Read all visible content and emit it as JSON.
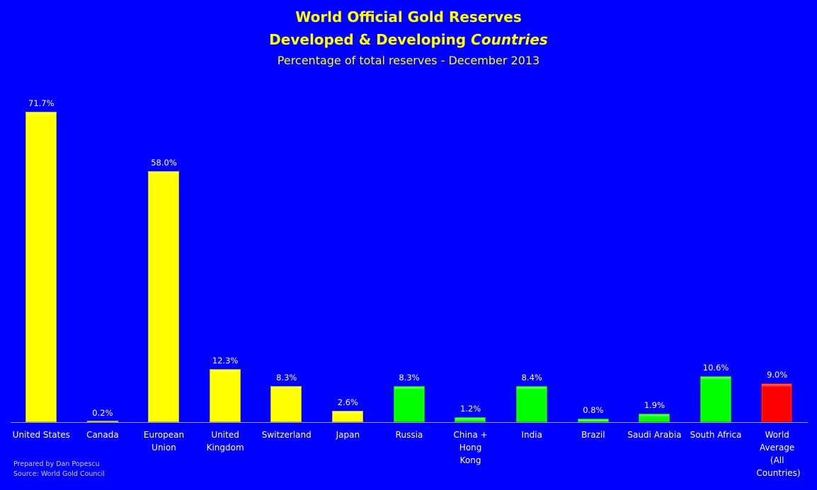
{
  "chart_data": {
    "type": "bar",
    "title": "World Official Gold Reserves",
    "subtitle_line1_prefix": "Developed & Developing ",
    "subtitle_line1_italic": "Countries",
    "subtitle": "Percentage of total reserves - December 2013",
    "xlabel": "",
    "ylabel": "",
    "ylim": [
      0,
      78
    ],
    "grid": false,
    "legend": null,
    "categories": [
      "United States",
      "Canada",
      "European Union",
      "United Kingdom",
      "Switzerland",
      "Japan",
      "Russia",
      "China + Hong Kong",
      "India",
      "Brazil",
      "Saudi Arabia",
      "South Africa",
      "World Average (All Countries)"
    ],
    "values": [
      71.7,
      0.2,
      58.0,
      12.3,
      8.3,
      2.6,
      8.3,
      1.2,
      8.4,
      0.8,
      1.9,
      10.6,
      9.0
    ],
    "value_labels": [
      "71.7%",
      "0.2%",
      "58.0%",
      "12.3%",
      "8.3%",
      "2.6%",
      "8.3%",
      "1.2%",
      "8.4%",
      "0.8%",
      "1.9%",
      "10.6%",
      "9.0%"
    ],
    "bar_colors": [
      "#ffff00",
      "#ffff00",
      "#ffff00",
      "#ffff00",
      "#ffff00",
      "#ffff00",
      "#00ff00",
      "#00ff00",
      "#00ff00",
      "#00ff00",
      "#00ff00",
      "#00ff00",
      "#ff0000"
    ],
    "groups": {
      "developed": "#ffff00",
      "developing": "#00ff00",
      "world_average": "#ff0000"
    }
  },
  "colors": {
    "background": "#0000ff",
    "title": "#ffff00",
    "text": "#ffffff"
  },
  "footer": {
    "prepared_by": "Prepared by Dan Popescu",
    "source": "Source: World Gold Council"
  }
}
